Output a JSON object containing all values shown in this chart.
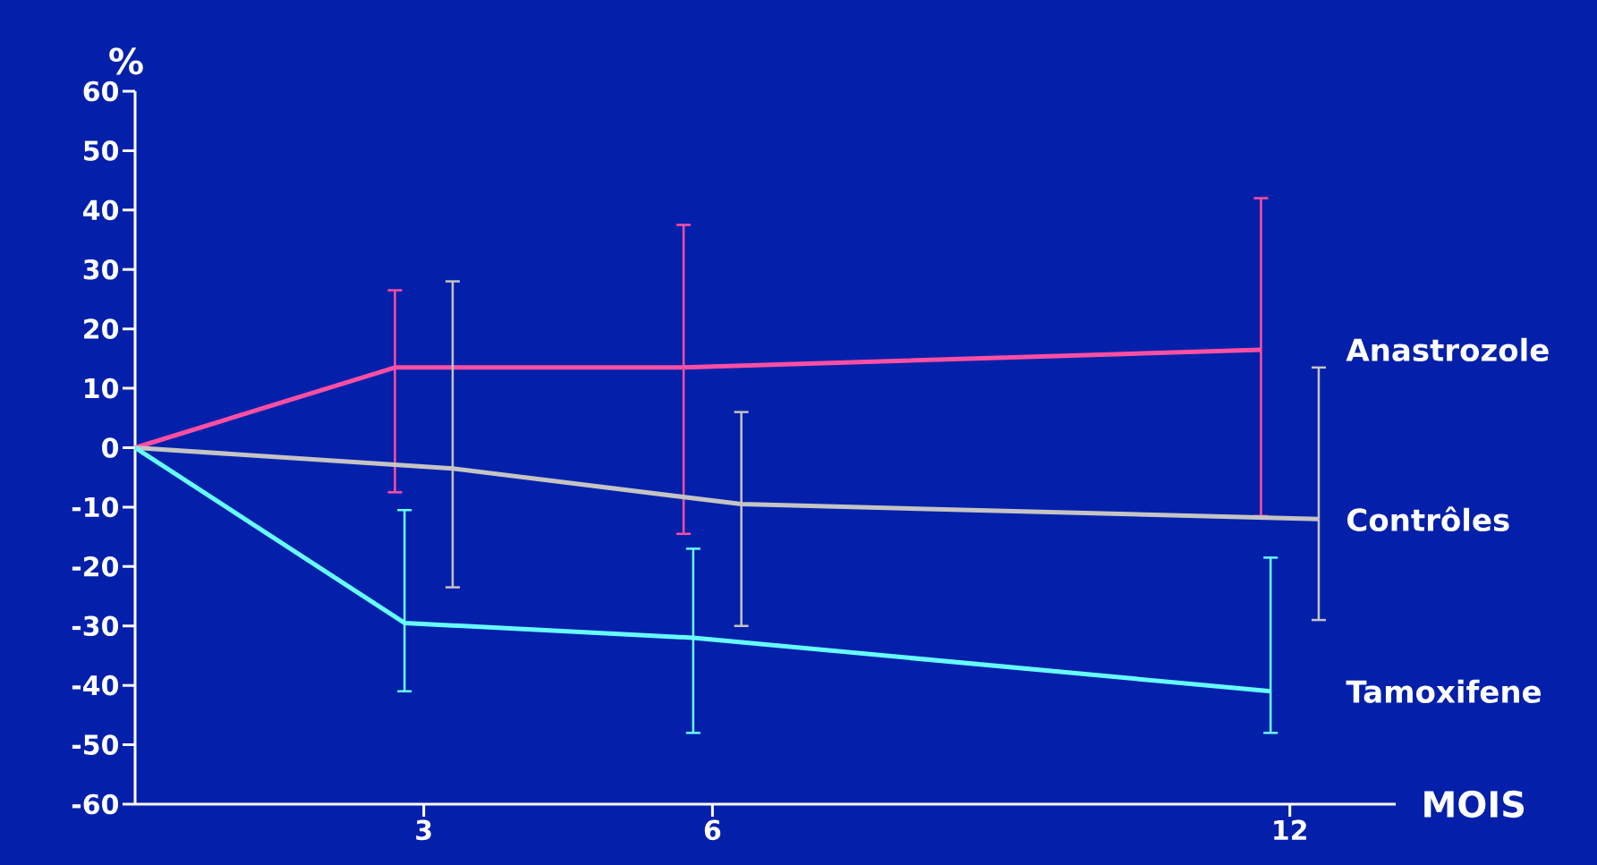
{
  "chart_data": {
    "type": "line",
    "xlabel": "MOIS",
    "ylabel": "%",
    "xlim": [
      0,
      13.1
    ],
    "xticks": [
      3,
      6,
      12
    ],
    "ylim": [
      -60,
      60
    ],
    "yticks": [
      -60,
      -50,
      -40,
      -30,
      -20,
      -10,
      0,
      10,
      20,
      30,
      40,
      50,
      60
    ],
    "series": [
      {
        "name": "Anastrozole",
        "color": "#ff4fa3",
        "x": [
          0,
          2.7,
          5.7,
          11.7
        ],
        "values": [
          0,
          13.5,
          13.5,
          16.5
        ],
        "errors": [
          null,
          [
            -7.5,
            26.5
          ],
          [
            -14.5,
            37.5
          ],
          [
            -11.5,
            42
          ]
        ]
      },
      {
        "name": "Contrôles",
        "color": "#c4c4c4",
        "x": [
          0,
          3.3,
          6.3,
          12.3
        ],
        "values": [
          0,
          -3.5,
          -9.5,
          -12
        ],
        "errors": [
          null,
          [
            -23.5,
            28
          ],
          [
            -30,
            6
          ],
          [
            -29,
            13.5
          ]
        ]
      },
      {
        "name": "Tamoxifene",
        "color": "#66ffff",
        "x": [
          0,
          2.8,
          5.8,
          11.8
        ],
        "values": [
          0,
          -29.5,
          -32,
          -41
        ],
        "errors": [
          null,
          [
            -41,
            -10.5
          ],
          [
            -48,
            -17
          ],
          [
            -48,
            -18.5
          ]
        ]
      }
    ]
  }
}
